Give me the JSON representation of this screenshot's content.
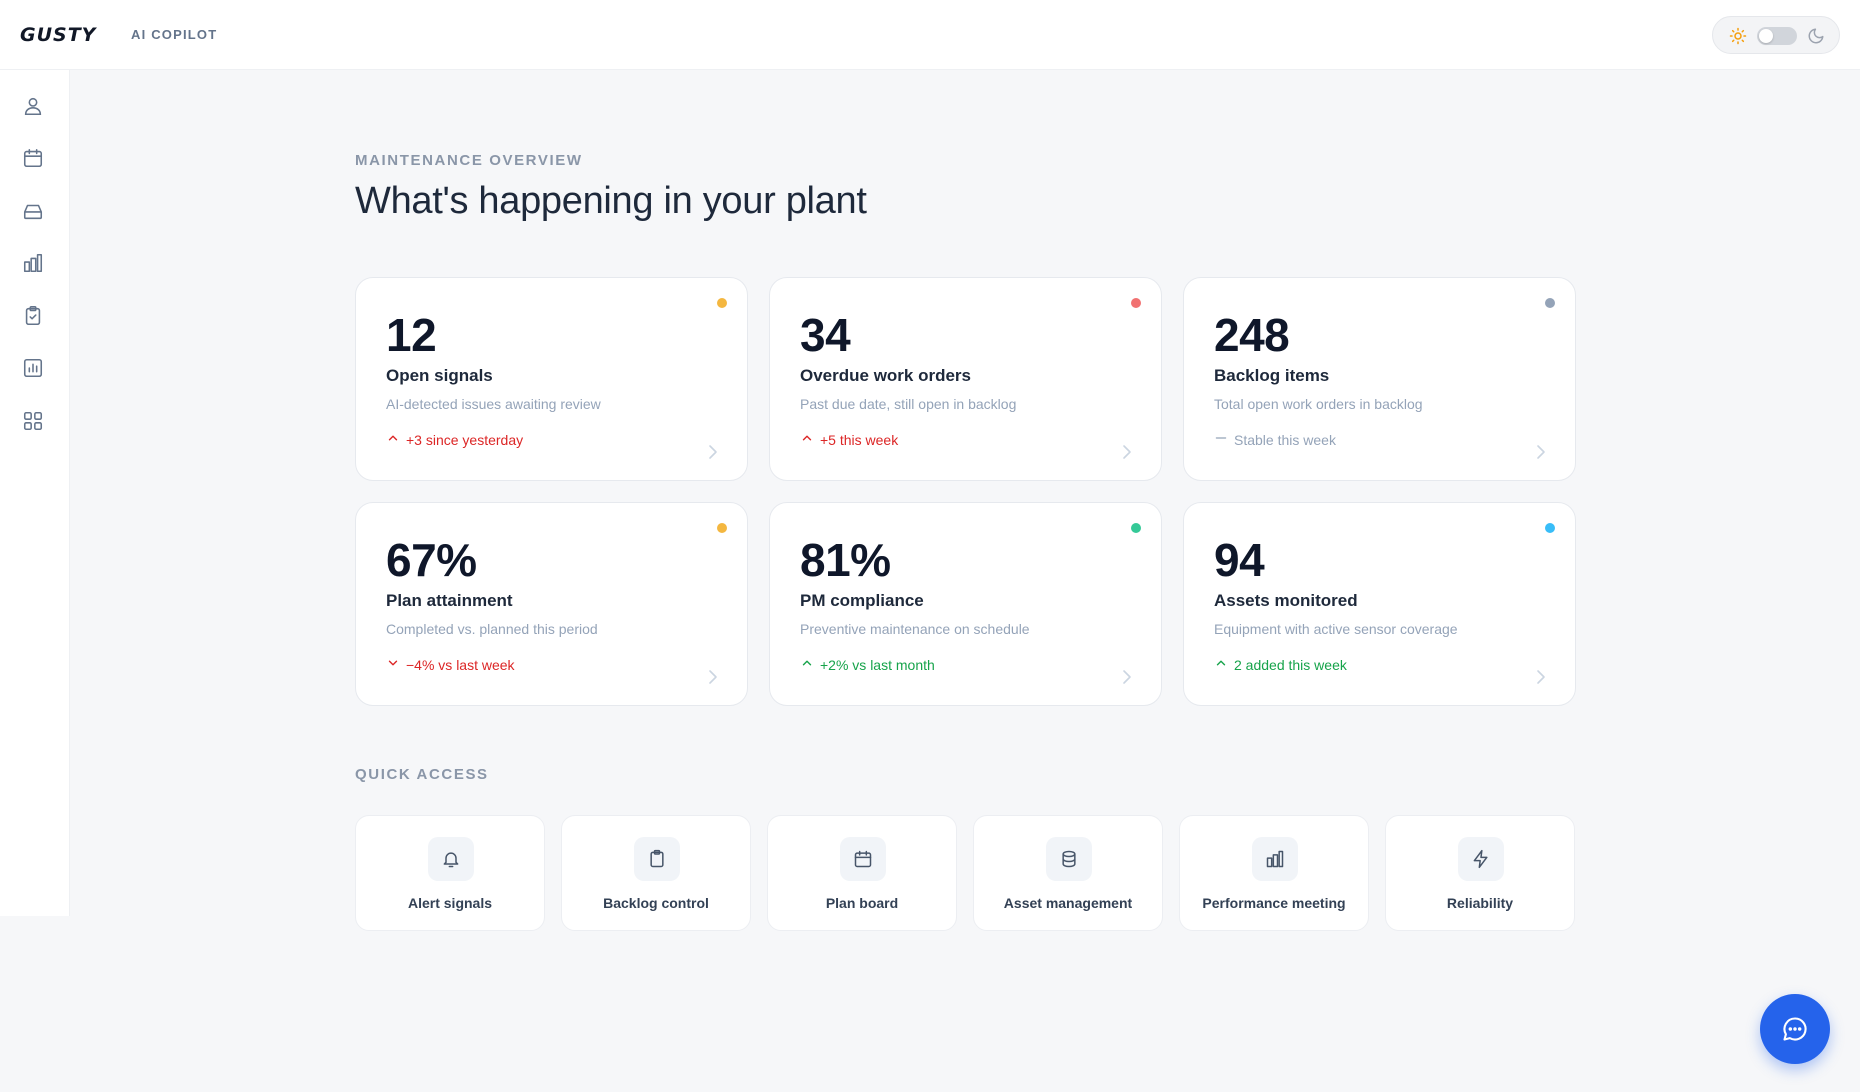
{
  "header": {
    "logo": "GUSTY",
    "product": "AI COPILOT"
  },
  "theme_toggle": {
    "mode": "light",
    "icons": [
      "sun-icon",
      "moon-icon"
    ]
  },
  "sidebar": {
    "items": [
      {
        "icon": "user-icon"
      },
      {
        "icon": "calendar-icon"
      },
      {
        "icon": "inbox-icon"
      },
      {
        "icon": "bar-chart-icon"
      },
      {
        "icon": "clipboard-check-icon"
      },
      {
        "icon": "report-icon"
      },
      {
        "icon": "grid-icon"
      }
    ]
  },
  "overview": {
    "eyebrow": "MAINTENANCE OVERVIEW",
    "title": "What's happening in your plant"
  },
  "cards": [
    {
      "value": "12",
      "label": "Open signals",
      "desc": "AI-detected issues awaiting review",
      "trend": "+3 since yesterday",
      "trend_dir": "up",
      "trend_color": "#dc2626",
      "dot_color": "#f4b740"
    },
    {
      "value": "34",
      "label": "Overdue work orders",
      "desc": "Past due date, still open in backlog",
      "trend": "+5 this week",
      "trend_dir": "up",
      "trend_color": "#dc2626",
      "dot_color": "#f17171"
    },
    {
      "value": "248",
      "label": "Backlog items",
      "desc": "Total open work orders in backlog",
      "trend": "Stable this week",
      "trend_dir": "flat",
      "trend_color": "#94a3b8",
      "dot_color": "#94a3b8"
    },
    {
      "value": "67%",
      "label": "Plan attainment",
      "desc": "Completed vs. planned this period",
      "trend": "−4% vs last week",
      "trend_dir": "down",
      "trend_color": "#dc2626",
      "dot_color": "#f4b740"
    },
    {
      "value": "81%",
      "label": "PM compliance",
      "desc": "Preventive maintenance on schedule",
      "trend": "+2% vs last month",
      "trend_dir": "up",
      "trend_color": "#16a34a",
      "dot_color": "#34c997"
    },
    {
      "value": "94",
      "label": "Assets monitored",
      "desc": "Equipment with active sensor coverage",
      "trend": "2 added this week",
      "trend_dir": "up",
      "trend_color": "#16a34a",
      "dot_color": "#38bdf8"
    }
  ],
  "quick_access": {
    "title": "QUICK ACCESS",
    "items": [
      {
        "label": "Alert signals",
        "icon": "bell-icon"
      },
      {
        "label": "Backlog control",
        "icon": "clipboard-icon"
      },
      {
        "label": "Plan board",
        "icon": "calendar-icon"
      },
      {
        "label": "Asset management",
        "icon": "database-icon"
      },
      {
        "label": "Performance meeting",
        "icon": "bar-chart-icon"
      },
      {
        "label": "Reliability",
        "icon": "lightning-icon"
      }
    ]
  },
  "chat": {
    "icon": "chat-bubble-icon"
  }
}
